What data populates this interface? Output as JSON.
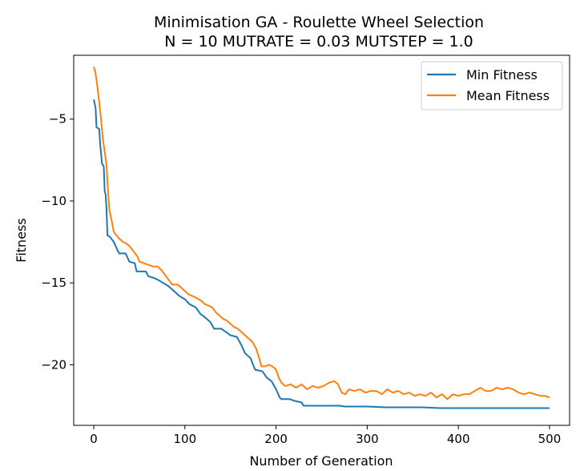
{
  "chart_data": {
    "type": "line",
    "title_line1": "Minimisation GA - Roulette Wheel Selection",
    "title_line2": "N = 10 MUTRATE = 0.03 MUTSTEP = 1.0",
    "xlabel": "Number of Generation",
    "ylabel": "Fitness",
    "xlim": [
      -22,
      522
    ],
    "ylim": [
      -23.7,
      -1.1
    ],
    "xticks": [
      0,
      100,
      200,
      300,
      400,
      500
    ],
    "yticks": [
      -5,
      -10,
      -15,
      -20
    ],
    "grid": false,
    "legend_position": "top-right",
    "series": [
      {
        "name": "Min Fitness",
        "color": "#1f77b4",
        "points": [
          [
            0,
            -3.8
          ],
          [
            2,
            -4.3
          ],
          [
            3,
            -5.5
          ],
          [
            6,
            -5.6
          ],
          [
            7,
            -6.5
          ],
          [
            9,
            -7.7
          ],
          [
            11,
            -7.9
          ],
          [
            12,
            -9.4
          ],
          [
            13,
            -9.6
          ],
          [
            14,
            -10.5
          ],
          [
            15,
            -12.1
          ],
          [
            18,
            -12.2
          ],
          [
            22,
            -12.5
          ],
          [
            26,
            -13.0
          ],
          [
            28,
            -13.2
          ],
          [
            35,
            -13.2
          ],
          [
            39,
            -13.7
          ],
          [
            45,
            -13.8
          ],
          [
            47,
            -14.3
          ],
          [
            57,
            -14.3
          ],
          [
            60,
            -14.6
          ],
          [
            66,
            -14.7
          ],
          [
            70,
            -14.8
          ],
          [
            76,
            -15.0
          ],
          [
            82,
            -15.2
          ],
          [
            88,
            -15.5
          ],
          [
            94,
            -15.8
          ],
          [
            100,
            -16.0
          ],
          [
            105,
            -16.3
          ],
          [
            112,
            -16.5
          ],
          [
            117,
            -16.9
          ],
          [
            122,
            -17.1
          ],
          [
            128,
            -17.4
          ],
          [
            132,
            -17.8
          ],
          [
            140,
            -17.8
          ],
          [
            145,
            -18.0
          ],
          [
            150,
            -18.2
          ],
          [
            157,
            -18.3
          ],
          [
            162,
            -18.8
          ],
          [
            166,
            -19.3
          ],
          [
            172,
            -19.6
          ],
          [
            177,
            -20.3
          ],
          [
            185,
            -20.4
          ],
          [
            190,
            -20.8
          ],
          [
            195,
            -21.0
          ],
          [
            200,
            -21.5
          ],
          [
            204,
            -22.0
          ],
          [
            206,
            -22.1
          ],
          [
            215,
            -22.1
          ],
          [
            220,
            -22.2
          ],
          [
            228,
            -22.3
          ],
          [
            230,
            -22.5
          ],
          [
            250,
            -22.5
          ],
          [
            270,
            -22.5
          ],
          [
            275,
            -22.55
          ],
          [
            300,
            -22.55
          ],
          [
            320,
            -22.6
          ],
          [
            360,
            -22.6
          ],
          [
            380,
            -22.65
          ],
          [
            440,
            -22.65
          ],
          [
            500,
            -22.65
          ]
        ]
      },
      {
        "name": "Mean Fitness",
        "color": "#ff7f0e",
        "points": [
          [
            0,
            -1.8
          ],
          [
            2,
            -2.2
          ],
          [
            4,
            -3.0
          ],
          [
            6,
            -4.0
          ],
          [
            8,
            -5.0
          ],
          [
            10,
            -6.2
          ],
          [
            12,
            -7.0
          ],
          [
            14,
            -7.8
          ],
          [
            15,
            -8.8
          ],
          [
            17,
            -10.5
          ],
          [
            20,
            -11.3
          ],
          [
            22,
            -11.9
          ],
          [
            25,
            -12.1
          ],
          [
            28,
            -12.3
          ],
          [
            32,
            -12.5
          ],
          [
            36,
            -12.6
          ],
          [
            40,
            -12.8
          ],
          [
            44,
            -13.1
          ],
          [
            48,
            -13.4
          ],
          [
            50,
            -13.7
          ],
          [
            55,
            -13.8
          ],
          [
            60,
            -13.9
          ],
          [
            65,
            -14.0
          ],
          [
            70,
            -14.0
          ],
          [
            74,
            -14.2
          ],
          [
            78,
            -14.5
          ],
          [
            82,
            -14.8
          ],
          [
            86,
            -15.1
          ],
          [
            92,
            -15.1
          ],
          [
            96,
            -15.3
          ],
          [
            100,
            -15.5
          ],
          [
            104,
            -15.7
          ],
          [
            108,
            -15.8
          ],
          [
            112,
            -15.9
          ],
          [
            118,
            -16.1
          ],
          [
            122,
            -16.3
          ],
          [
            126,
            -16.4
          ],
          [
            130,
            -16.5
          ],
          [
            134,
            -16.8
          ],
          [
            138,
            -17.0
          ],
          [
            142,
            -17.2
          ],
          [
            146,
            -17.3
          ],
          [
            150,
            -17.5
          ],
          [
            154,
            -17.7
          ],
          [
            158,
            -17.8
          ],
          [
            162,
            -18.0
          ],
          [
            166,
            -18.2
          ],
          [
            170,
            -18.4
          ],
          [
            174,
            -18.6
          ],
          [
            178,
            -19.0
          ],
          [
            181,
            -19.5
          ],
          [
            184,
            -20.1
          ],
          [
            188,
            -20.1
          ],
          [
            192,
            -20.0
          ],
          [
            196,
            -20.1
          ],
          [
            200,
            -20.3
          ],
          [
            203,
            -20.8
          ],
          [
            206,
            -21.1
          ],
          [
            210,
            -21.3
          ],
          [
            216,
            -21.2
          ],
          [
            222,
            -21.4
          ],
          [
            228,
            -21.2
          ],
          [
            234,
            -21.5
          ],
          [
            240,
            -21.3
          ],
          [
            246,
            -21.4
          ],
          [
            252,
            -21.3
          ],
          [
            258,
            -21.1
          ],
          [
            264,
            -21.0
          ],
          [
            268,
            -21.2
          ],
          [
            272,
            -21.7
          ],
          [
            276,
            -21.8
          ],
          [
            280,
            -21.5
          ],
          [
            286,
            -21.6
          ],
          [
            292,
            -21.5
          ],
          [
            298,
            -21.7
          ],
          [
            304,
            -21.6
          ],
          [
            310,
            -21.6
          ],
          [
            316,
            -21.8
          ],
          [
            322,
            -21.5
          ],
          [
            328,
            -21.7
          ],
          [
            334,
            -21.6
          ],
          [
            340,
            -21.8
          ],
          [
            346,
            -21.7
          ],
          [
            352,
            -21.9
          ],
          [
            358,
            -21.8
          ],
          [
            364,
            -21.9
          ],
          [
            370,
            -21.7
          ],
          [
            376,
            -22.0
          ],
          [
            382,
            -21.8
          ],
          [
            388,
            -22.1
          ],
          [
            394,
            -21.8
          ],
          [
            400,
            -21.9
          ],
          [
            406,
            -21.8
          ],
          [
            412,
            -21.8
          ],
          [
            418,
            -21.6
          ],
          [
            424,
            -21.4
          ],
          [
            430,
            -21.6
          ],
          [
            436,
            -21.6
          ],
          [
            442,
            -21.4
          ],
          [
            448,
            -21.5
          ],
          [
            454,
            -21.4
          ],
          [
            460,
            -21.5
          ],
          [
            466,
            -21.7
          ],
          [
            472,
            -21.8
          ],
          [
            478,
            -21.7
          ],
          [
            484,
            -21.8
          ],
          [
            490,
            -21.9
          ],
          [
            495,
            -21.9
          ],
          [
            500,
            -22.0
          ]
        ]
      }
    ]
  }
}
